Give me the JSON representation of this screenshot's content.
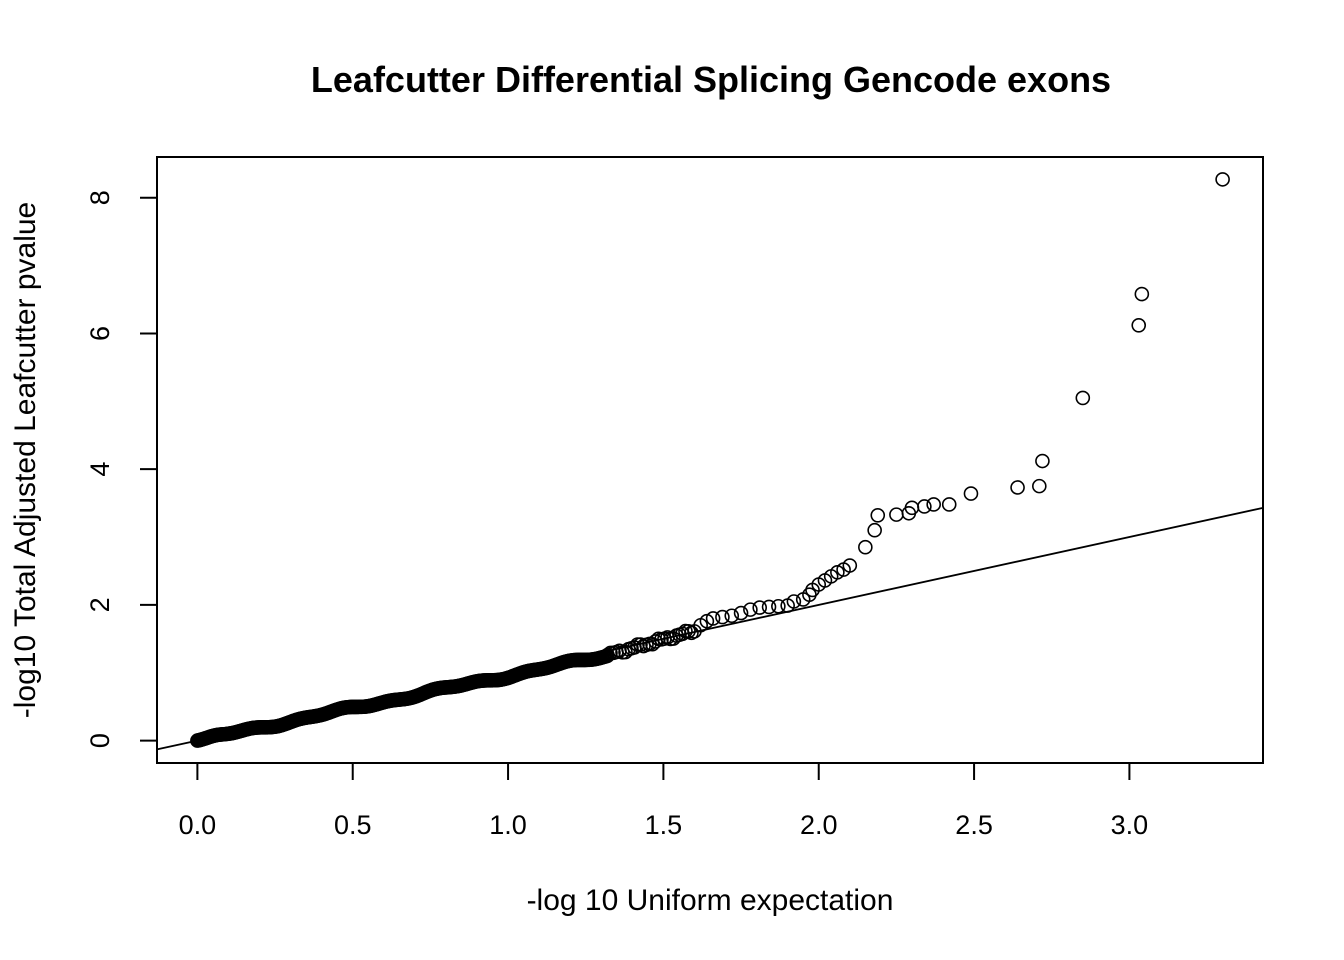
{
  "chart_data": {
    "type": "scatter",
    "title": "Leafcutter Differential Splicing Gencode exons",
    "xlabel": "-log 10 Uniform expectation",
    "ylabel": "-log10 Total Adjusted Leafcutter pvalue",
    "xlim": [
      -0.13,
      3.43
    ],
    "ylim": [
      -0.33,
      8.6
    ],
    "xticks": [
      0.0,
      0.5,
      1.0,
      1.5,
      2.0,
      2.5,
      3.0
    ],
    "xtick_labels": [
      "0.0",
      "0.5",
      "1.0",
      "1.5",
      "2.0",
      "2.5",
      "3.0"
    ],
    "yticks": [
      0,
      2,
      4,
      6,
      8
    ],
    "ytick_labels": [
      "0",
      "2",
      "4",
      "6",
      "8"
    ],
    "grid": false,
    "reference_line": {
      "intercept": 0,
      "slope": 1
    },
    "dense_segments": [
      {
        "x_start": 0.0,
        "x_end": 1.32,
        "y_start": 0.0,
        "y_end": 1.26,
        "count": 340
      },
      {
        "x_start": 1.32,
        "x_end": 1.6,
        "y_start": 1.26,
        "y_end": 1.62,
        "count": 30
      }
    ],
    "points": [
      [
        1.62,
        1.7
      ],
      [
        1.64,
        1.76
      ],
      [
        1.66,
        1.8
      ],
      [
        1.69,
        1.82
      ],
      [
        1.72,
        1.84
      ],
      [
        1.75,
        1.88
      ],
      [
        1.78,
        1.93
      ],
      [
        1.81,
        1.96
      ],
      [
        1.84,
        1.97
      ],
      [
        1.87,
        1.98
      ],
      [
        1.9,
        1.99
      ],
      [
        1.92,
        2.05
      ],
      [
        1.95,
        2.08
      ],
      [
        1.97,
        2.15
      ],
      [
        1.98,
        2.22
      ],
      [
        2.0,
        2.3
      ],
      [
        2.02,
        2.36
      ],
      [
        2.04,
        2.42
      ],
      [
        2.06,
        2.48
      ],
      [
        2.08,
        2.52
      ],
      [
        2.1,
        2.58
      ],
      [
        2.15,
        2.85
      ],
      [
        2.18,
        3.1
      ],
      [
        2.19,
        3.32
      ],
      [
        2.25,
        3.33
      ],
      [
        2.29,
        3.35
      ],
      [
        2.3,
        3.43
      ],
      [
        2.34,
        3.45
      ],
      [
        2.37,
        3.48
      ],
      [
        2.42,
        3.48
      ],
      [
        2.49,
        3.64
      ],
      [
        2.64,
        3.73
      ],
      [
        2.71,
        3.75
      ],
      [
        2.72,
        4.12
      ],
      [
        2.85,
        5.05
      ],
      [
        3.03,
        6.12
      ],
      [
        3.04,
        6.58
      ],
      [
        3.3,
        8.27
      ]
    ]
  },
  "colors": {
    "points": "#000000",
    "line": "#000000",
    "background": "#ffffff"
  }
}
